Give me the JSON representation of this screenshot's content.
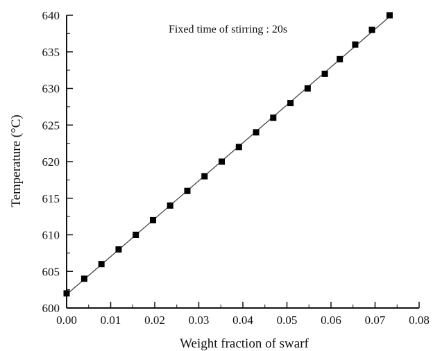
{
  "chart_data": {
    "type": "scatter",
    "title": "",
    "annotation": "Fixed time of stirring : 20s",
    "xlabel": "Weight fraction of swarf",
    "ylabel": "Temperature (°C)",
    "xlim": [
      0.0,
      0.08
    ],
    "ylim": [
      600,
      640
    ],
    "x_ticks": [
      "0.00",
      "0.01",
      "0.02",
      "0.03",
      "0.04",
      "0.05",
      "0.06",
      "0.07",
      "0.08"
    ],
    "y_ticks": [
      "600",
      "605",
      "610",
      "615",
      "620",
      "625",
      "630",
      "635",
      "640"
    ],
    "grid": false,
    "legend": "none",
    "series": [
      {
        "marker": "square",
        "color": "#000000",
        "fit_line": true,
        "points": [
          {
            "x": 0.0,
            "y": 602
          },
          {
            "x": 0.004,
            "y": 604
          },
          {
            "x": 0.0079,
            "y": 606
          },
          {
            "x": 0.0118,
            "y": 608
          },
          {
            "x": 0.0157,
            "y": 610
          },
          {
            "x": 0.0196,
            "y": 612
          },
          {
            "x": 0.0235,
            "y": 614
          },
          {
            "x": 0.0274,
            "y": 616
          },
          {
            "x": 0.0313,
            "y": 618
          },
          {
            "x": 0.0352,
            "y": 620
          },
          {
            "x": 0.0391,
            "y": 622
          },
          {
            "x": 0.043,
            "y": 624
          },
          {
            "x": 0.0469,
            "y": 626
          },
          {
            "x": 0.0508,
            "y": 628
          },
          {
            "x": 0.0547,
            "y": 630
          },
          {
            "x": 0.0586,
            "y": 632
          },
          {
            "x": 0.062,
            "y": 634
          },
          {
            "x": 0.0655,
            "y": 636
          },
          {
            "x": 0.0693,
            "y": 638
          },
          {
            "x": 0.0733,
            "y": 640
          }
        ]
      }
    ]
  }
}
